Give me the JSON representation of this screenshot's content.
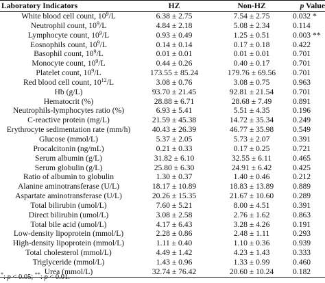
{
  "table": {
    "headers": {
      "indicator": "Laboratory Indicators",
      "hz": "HZ",
      "non_hz": "Non-HZ",
      "p_prefix": "p",
      "p_suffix": " Value"
    },
    "rows": [
      {
        "name": "White blood cell count, 10",
        "sup": "9",
        "unit": "/L",
        "hz": "6.38 ± 2.75",
        "non_hz": "7.54 ± 2.75",
        "p": "0.032 *"
      },
      {
        "name": "Neutrophil count, 10",
        "sup": "9",
        "unit": "/L",
        "hz": "4.84 ± 2.18",
        "non_hz": "5.08 ± 2.34",
        "p": "0.114"
      },
      {
        "name": "Lymphocyte count, 10",
        "sup": "9",
        "unit": "/L",
        "hz": "0.93 ± 0.49",
        "non_hz": "1.25 ± 0.51",
        "p": "0.003 **"
      },
      {
        "name": "Eosnophils count, 10",
        "sup": "9",
        "unit": "/L",
        "hz": "0.14 ± 0.14",
        "non_hz": "0.17 ± 0.18",
        "p": "0.422"
      },
      {
        "name": "Basophil count, 10",
        "sup": "9",
        "unit": "/L",
        "hz": "0.01 ± 0.01",
        "non_hz": "0.01 ± 0.01",
        "p": "0.701"
      },
      {
        "name": "Monocyte count, 10",
        "sup": "9",
        "unit": "/L",
        "hz": "0.44 ± 0.26",
        "non_hz": "0.40 ± 0.17",
        "p": "0.701"
      },
      {
        "name": "Platelet count, 10",
        "sup": "9",
        "unit": "/L",
        "hz": "173.55 ± 85.24",
        "non_hz": "179.76 ± 69.56",
        "p": "0.701"
      },
      {
        "name": "Red blood cell count, 10",
        "sup": "12",
        "unit": "/L",
        "hz": "3.08 ± 0.76",
        "non_hz": "3.08 ± 0.75",
        "p": "0.963"
      },
      {
        "name": "Hb (g/L)",
        "sup": "",
        "unit": "",
        "hz": "93.70 ± 21.45",
        "non_hz": "92.81 ± 21.54",
        "p": "0.701"
      },
      {
        "name": "Hematocrit (%)",
        "sup": "",
        "unit": "",
        "hz": "28.88 ± 6.71",
        "non_hz": "28.68 ± 7.49",
        "p": "0.891"
      },
      {
        "name": "Neutrophils-lymphocytes ratio (%)",
        "sup": "",
        "unit": "",
        "hz": "6.93 ± 5.41",
        "non_hz": "5.51 ± 4.35",
        "p": "0.196"
      },
      {
        "name": "C-reactive protein (mg/L)",
        "sup": "",
        "unit": "",
        "hz": "21.59 ± 45.38",
        "non_hz": "14.72 ± 35.34",
        "p": "0.249"
      },
      {
        "name": "Erythrocyte sedimentation rate (mm/h)",
        "sup": "",
        "unit": "",
        "hz": "40.43 ± 26.39",
        "non_hz": "46.77 ± 35.98",
        "p": "0.549"
      },
      {
        "name": "Glucose (mmol/L)",
        "sup": "",
        "unit": "",
        "hz": "5.37 ± 2.05",
        "non_hz": "5.73 ± 2.07",
        "p": "0.391"
      },
      {
        "name": "Procalcitonin (ng/mL)",
        "sup": "",
        "unit": "",
        "hz": "0.21 ± 0.33",
        "non_hz": "0.17 ± 0.25",
        "p": "0.721"
      },
      {
        "name": "Serum albumin (g/L)",
        "sup": "",
        "unit": "",
        "hz": "31.82 ± 6.10",
        "non_hz": "32.55 ± 6.11",
        "p": "0.465"
      },
      {
        "name": "Serum globulin (g/L)",
        "sup": "",
        "unit": "",
        "hz": "25.80 ± 6.30",
        "non_hz": "24.91 ± 6.42",
        "p": "0.425"
      },
      {
        "name": "Ratio of albumin to globulin",
        "sup": "",
        "unit": "",
        "hz": "1.30 ± 0.37",
        "non_hz": "1.40 ± 0.46",
        "p": "0.212"
      },
      {
        "name": "Alanine aminotransferase (U/L)",
        "sup": "",
        "unit": "",
        "hz": "18.17 ± 10.89",
        "non_hz": "18.83 ± 13.89",
        "p": "0.889"
      },
      {
        "name": "Aspartate aminotransferase (U/L)",
        "sup": "",
        "unit": "",
        "hz": "20.26 ± 15.35",
        "non_hz": "21.67 ± 10.60",
        "p": "0.289"
      },
      {
        "name": "Total bilirubin (umol/L)",
        "sup": "",
        "unit": "",
        "hz": "7.60 ± 5.21",
        "non_hz": "8.00 ± 4.51",
        "p": "0.391"
      },
      {
        "name": "Direct bilirubin (umol/L)",
        "sup": "",
        "unit": "",
        "hz": "3.08 ± 2.58",
        "non_hz": "2.76 ± 1.62",
        "p": "0.863"
      },
      {
        "name": "Total bile acid (umol/L)",
        "sup": "",
        "unit": "",
        "hz": "4.17 ± 6.43",
        "non_hz": "3.28 ± 4.26",
        "p": "0.191"
      },
      {
        "name": "Low-density lipoprotein (mmol/L)",
        "sup": "",
        "unit": "",
        "hz": "2.28 ± 0.86",
        "non_hz": "2.48 ± 1.11",
        "p": "0.293"
      },
      {
        "name": "High-density lipoprotein (mmol/L)",
        "sup": "",
        "unit": "",
        "hz": "1.11 ± 0.40",
        "non_hz": "1.10 ± 0.36",
        "p": "0.939"
      },
      {
        "name": "Total cholesterol (mmol/L)",
        "sup": "",
        "unit": "",
        "hz": "4.49 ± 1.42",
        "non_hz": "4.23 ± 1.43",
        "p": "0.333"
      },
      {
        "name": "Triglyceride (mmol/L)",
        "sup": "",
        "unit": "",
        "hz": "1.43 ± 0.96",
        "non_hz": "1.33 ± 0.99",
        "p": "0.460"
      },
      {
        "name": "Urea (mmol/L)",
        "sup": "",
        "unit": "",
        "hz": "32.74 ± 76.42",
        "non_hz": "20.60 ± 10.24",
        "p": "0.182"
      }
    ]
  },
  "footnote": {
    "s1": "*",
    "t1": ": ",
    "p1": "p",
    "c1": " < 0.05; ",
    "s2": "**",
    "t2": ": ",
    "p2": "p",
    "c2": " < 0.01."
  }
}
